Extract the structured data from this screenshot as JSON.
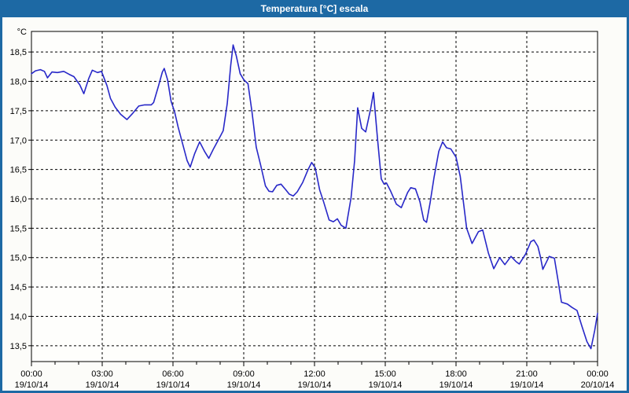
{
  "window": {
    "title": "Temperatura [°C] escala"
  },
  "colors": {
    "titlebar": "#1d69a4",
    "window_border": "#1d69a4",
    "page_bg": "#fcfcf9",
    "plot_bg": "#fefefc",
    "grid": "#000000",
    "axis": "#000000",
    "text": "#000000",
    "line": "#2828c8"
  },
  "chart_data": {
    "type": "line",
    "title": "Temperatura [°C] escala",
    "ylabel": "°C",
    "xlabel": "",
    "grid": "dashed",
    "legend_position": "none",
    "xlim_hours": [
      0,
      24
    ],
    "ylim": [
      13.23,
      18.85
    ],
    "x_minor_step_hours": 1,
    "y_ticks": [
      {
        "value": 18.5,
        "label": "18,5"
      },
      {
        "value": 18.0,
        "label": "18,0"
      },
      {
        "value": 17.5,
        "label": "17,5"
      },
      {
        "value": 17.0,
        "label": "17,0"
      },
      {
        "value": 16.5,
        "label": "16,5"
      },
      {
        "value": 16.0,
        "label": "16,0"
      },
      {
        "value": 15.5,
        "label": "15,5"
      },
      {
        "value": 15.0,
        "label": "15,0"
      },
      {
        "value": 14.5,
        "label": "14,5"
      },
      {
        "value": 14.0,
        "label": "14,0"
      },
      {
        "value": 13.5,
        "label": "13,5"
      }
    ],
    "x_ticks": [
      {
        "hour": 0,
        "time": "00:00",
        "date": "19/10/14"
      },
      {
        "hour": 3,
        "time": "03:00",
        "date": "19/10/14"
      },
      {
        "hour": 6,
        "time": "06:00",
        "date": "19/10/14"
      },
      {
        "hour": 9,
        "time": "09:00",
        "date": "19/10/14"
      },
      {
        "hour": 12,
        "time": "12:00",
        "date": "19/10/14"
      },
      {
        "hour": 15,
        "time": "15:00",
        "date": "19/10/14"
      },
      {
        "hour": 18,
        "time": "18:00",
        "date": "19/10/14"
      },
      {
        "hour": 21,
        "time": "21:00",
        "date": "19/10/14"
      },
      {
        "hour": 24,
        "time": "00:00",
        "date": "20/10/14"
      }
    ],
    "series": [
      {
        "name": "Temperatura",
        "color": "#2828c8",
        "points": [
          [
            0,
            18.13
          ],
          [
            0.17,
            18.18
          ],
          [
            0.38,
            18.2
          ],
          [
            0.55,
            18.17
          ],
          [
            0.68,
            18.06
          ],
          [
            0.87,
            18.16
          ],
          [
            1.1,
            18.15
          ],
          [
            1.37,
            18.17
          ],
          [
            1.6,
            18.12
          ],
          [
            1.8,
            18.08
          ],
          [
            2.05,
            17.94
          ],
          [
            2.22,
            17.79
          ],
          [
            2.43,
            18.05
          ],
          [
            2.58,
            18.19
          ],
          [
            2.8,
            18.15
          ],
          [
            2.97,
            18.17
          ],
          [
            3.2,
            17.93
          ],
          [
            3.35,
            17.71
          ],
          [
            3.55,
            17.56
          ],
          [
            3.78,
            17.44
          ],
          [
            4.05,
            17.35
          ],
          [
            4.3,
            17.46
          ],
          [
            4.55,
            17.58
          ],
          [
            4.8,
            17.6
          ],
          [
            5.08,
            17.6
          ],
          [
            5.18,
            17.64
          ],
          [
            5.37,
            17.9
          ],
          [
            5.55,
            18.16
          ],
          [
            5.63,
            18.22
          ],
          [
            5.77,
            18.03
          ],
          [
            5.92,
            17.66
          ],
          [
            6.07,
            17.48
          ],
          [
            6.22,
            17.22
          ],
          [
            6.42,
            16.92
          ],
          [
            6.6,
            16.65
          ],
          [
            6.73,
            16.54
          ],
          [
            6.92,
            16.77
          ],
          [
            7.13,
            16.97
          ],
          [
            7.35,
            16.8
          ],
          [
            7.52,
            16.69
          ],
          [
            7.73,
            16.86
          ],
          [
            8,
            17.06
          ],
          [
            8.13,
            17.16
          ],
          [
            8.3,
            17.62
          ],
          [
            8.45,
            18.28
          ],
          [
            8.55,
            18.62
          ],
          [
            8.68,
            18.44
          ],
          [
            8.85,
            18.13
          ],
          [
            9,
            18.03
          ],
          [
            9.18,
            17.96
          ],
          [
            9.35,
            17.48
          ],
          [
            9.53,
            16.88
          ],
          [
            9.72,
            16.57
          ],
          [
            9.92,
            16.22
          ],
          [
            10.07,
            16.13
          ],
          [
            10.22,
            16.12
          ],
          [
            10.4,
            16.23
          ],
          [
            10.58,
            16.25
          ],
          [
            10.77,
            16.16
          ],
          [
            10.93,
            16.08
          ],
          [
            11.1,
            16.05
          ],
          [
            11.27,
            16.12
          ],
          [
            11.5,
            16.28
          ],
          [
            11.73,
            16.5
          ],
          [
            11.88,
            16.62
          ],
          [
            12.03,
            16.53
          ],
          [
            12.22,
            16.15
          ],
          [
            12.37,
            15.97
          ],
          [
            12.62,
            15.64
          ],
          [
            12.8,
            15.61
          ],
          [
            12.97,
            15.66
          ],
          [
            13.13,
            15.55
          ],
          [
            13.33,
            15.5
          ],
          [
            13.55,
            16.02
          ],
          [
            13.7,
            16.65
          ],
          [
            13.83,
            17.55
          ],
          [
            14,
            17.2
          ],
          [
            14.17,
            17.14
          ],
          [
            14.38,
            17.53
          ],
          [
            14.5,
            17.81
          ],
          [
            14.67,
            17.03
          ],
          [
            14.83,
            16.34
          ],
          [
            14.95,
            16.25
          ],
          [
            15.05,
            16.27
          ],
          [
            15.23,
            16.13
          ],
          [
            15.47,
            15.91
          ],
          [
            15.68,
            15.85
          ],
          [
            15.95,
            16.11
          ],
          [
            16.08,
            16.19
          ],
          [
            16.28,
            16.17
          ],
          [
            16.47,
            15.95
          ],
          [
            16.63,
            15.64
          ],
          [
            16.75,
            15.6
          ],
          [
            16.9,
            15.93
          ],
          [
            17.07,
            16.37
          ],
          [
            17.27,
            16.81
          ],
          [
            17.43,
            16.97
          ],
          [
            17.6,
            16.87
          ],
          [
            17.78,
            16.85
          ],
          [
            18,
            16.71
          ],
          [
            18.18,
            16.38
          ],
          [
            18.45,
            15.5
          ],
          [
            18.68,
            15.24
          ],
          [
            18.95,
            15.44
          ],
          [
            19.13,
            15.47
          ],
          [
            19.37,
            15.08
          ],
          [
            19.6,
            14.81
          ],
          [
            19.85,
            15.0
          ],
          [
            20.07,
            14.88
          ],
          [
            20.33,
            15.02
          ],
          [
            20.55,
            14.93
          ],
          [
            20.68,
            14.89
          ],
          [
            20.95,
            15.06
          ],
          [
            21.17,
            15.27
          ],
          [
            21.3,
            15.3
          ],
          [
            21.47,
            15.19
          ],
          [
            21.58,
            15.01
          ],
          [
            21.68,
            14.8
          ],
          [
            21.95,
            15.02
          ],
          [
            22.17,
            14.99
          ],
          [
            22.33,
            14.6
          ],
          [
            22.47,
            14.24
          ],
          [
            22.72,
            14.21
          ],
          [
            22.92,
            14.15
          ],
          [
            23.13,
            14.1
          ],
          [
            23.33,
            13.84
          ],
          [
            23.55,
            13.57
          ],
          [
            23.72,
            13.45
          ],
          [
            23.88,
            13.76
          ],
          [
            24,
            14.05
          ]
        ]
      }
    ]
  }
}
